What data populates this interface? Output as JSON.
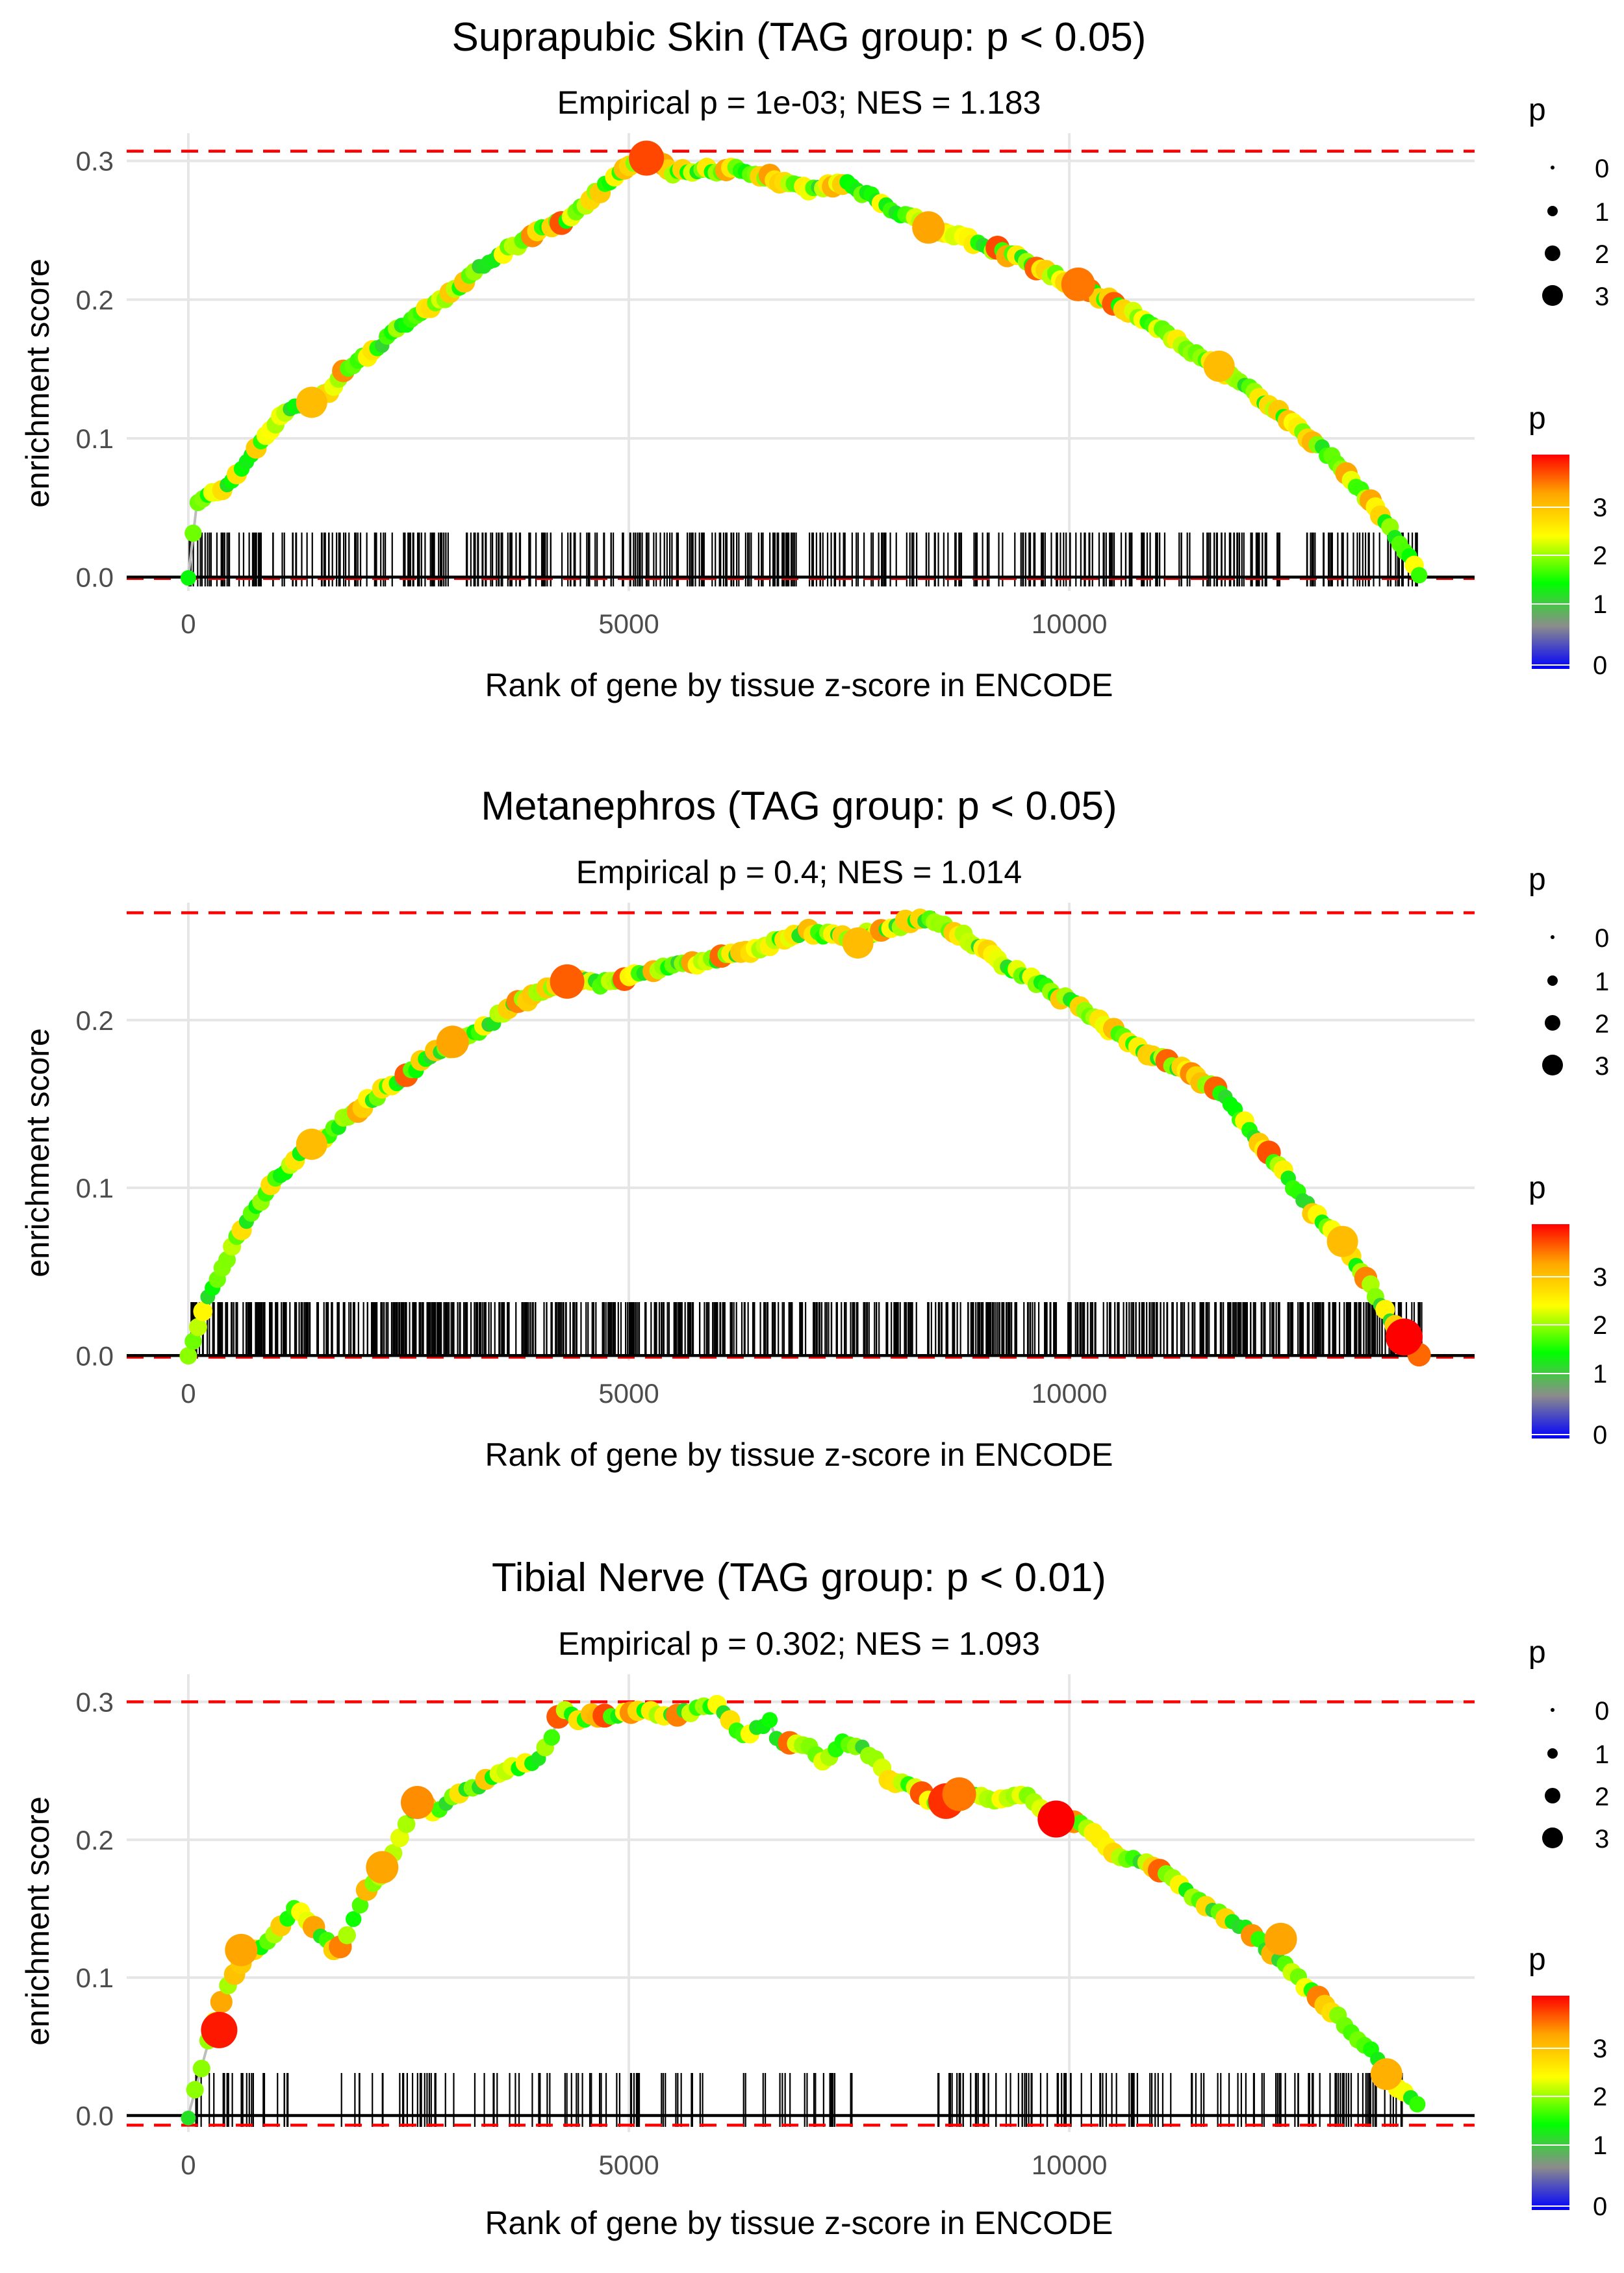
{
  "colors": {
    "panel_grid": "#e6e6e6",
    "threshold_line": "#ff0000",
    "baseline": "#000000",
    "curve": "#bdbdbd",
    "rug": "#000000",
    "axis_text": "#4d4d4d",
    "gradient": [
      "#0000ff",
      "#8c8c8c",
      "#00ff00",
      "#ffff00",
      "#ffa500",
      "#ff0000"
    ]
  },
  "legend": {
    "size_title": "p",
    "size_labels": [
      "0",
      "1",
      "2",
      "3"
    ],
    "color_title": "p",
    "color_labels": [
      "0",
      "1",
      "2",
      "3"
    ]
  },
  "chart_data": [
    {
      "type": "line",
      "title": "Suprapubic Skin (TAG group: p < 0.05)",
      "subtitle": "Empirical p = 1e-03; NES = 1.183",
      "xlabel": "Rank of gene by tissue z-score in ENCODE",
      "ylabel": "enrichment score",
      "xlim": [
        -700,
        14600
      ],
      "ylim": [
        -0.01,
        0.32
      ],
      "xticks": [
        0,
        5000,
        10000
      ],
      "xtick_labels": [
        "0",
        "5000",
        "10000"
      ],
      "yticks": [
        0.0,
        0.1,
        0.2,
        0.3
      ],
      "ytick_labels": [
        "0.0",
        "0.1",
        "0.2",
        "0.3"
      ],
      "grid": true,
      "max_es": 0.307,
      "min_es": -0.001,
      "n_genes": 14000,
      "curve": [
        [
          0,
          0
        ],
        [
          100,
          0.055
        ],
        [
          300,
          0.062
        ],
        [
          500,
          0.068
        ],
        [
          700,
          0.085
        ],
        [
          900,
          0.105
        ],
        [
          1100,
          0.12
        ],
        [
          1400,
          0.126
        ],
        [
          1600,
          0.135
        ],
        [
          1800,
          0.15
        ],
        [
          2100,
          0.163
        ],
        [
          2400,
          0.18
        ],
        [
          2700,
          0.193
        ],
        [
          3000,
          0.205
        ],
        [
          3300,
          0.222
        ],
        [
          3600,
          0.235
        ],
        [
          4000,
          0.25
        ],
        [
          4300,
          0.257
        ],
        [
          4600,
          0.275
        ],
        [
          4900,
          0.29
        ],
        [
          5200,
          0.305
        ],
        [
          5500,
          0.292
        ],
        [
          5800,
          0.293
        ],
        [
          6200,
          0.294
        ],
        [
          6600,
          0.288
        ],
        [
          7000,
          0.28
        ],
        [
          7500,
          0.283
        ],
        [
          8000,
          0.265
        ],
        [
          8500,
          0.25
        ],
        [
          9000,
          0.24
        ],
        [
          9500,
          0.228
        ],
        [
          10000,
          0.212
        ],
        [
          10500,
          0.198
        ],
        [
          11000,
          0.18
        ],
        [
          11500,
          0.158
        ],
        [
          12000,
          0.138
        ],
        [
          12500,
          0.112
        ],
        [
          13000,
          0.085
        ],
        [
          13500,
          0.048
        ],
        [
          13900,
          0.01
        ],
        [
          14000,
          0.0
        ]
      ],
      "rug_seed": 7,
      "rug_count": 430,
      "rug_range": [
        0,
        14000
      ],
      "point_spacing": 55,
      "point_seed": 11,
      "highlight_points": [
        [
          5200,
          0.302,
          3.6
        ],
        [
          1400,
          0.126,
          3.0
        ],
        [
          8400,
          0.252,
          3.2
        ],
        [
          10100,
          0.211,
          3.4
        ],
        [
          11700,
          0.152,
          3.0
        ]
      ]
    },
    {
      "type": "line",
      "title": "Metanephros (TAG group: p < 0.05)",
      "subtitle": "Empirical p = 0.4; NES = 1.014",
      "xlabel": "Rank of gene by tissue z-score in ENCODE",
      "ylabel": "enrichment score",
      "xlim": [
        -700,
        14600
      ],
      "ylim": [
        -0.003,
        0.27
      ],
      "xticks": [
        0,
        5000,
        10000
      ],
      "xtick_labels": [
        "0",
        "5000",
        "10000"
      ],
      "yticks": [
        0.0,
        0.1,
        0.2
      ],
      "ytick_labels": [
        "0.0",
        "0.1",
        "0.2"
      ],
      "grid": true,
      "max_es": 0.264,
      "min_es": -0.001,
      "n_genes": 14000,
      "curve": [
        [
          0,
          0
        ],
        [
          150,
          0.025
        ],
        [
          300,
          0.043
        ],
        [
          500,
          0.065
        ],
        [
          700,
          0.085
        ],
        [
          1000,
          0.105
        ],
        [
          1300,
          0.122
        ],
        [
          1600,
          0.133
        ],
        [
          2000,
          0.15
        ],
        [
          2400,
          0.165
        ],
        [
          2800,
          0.18
        ],
        [
          3200,
          0.19
        ],
        [
          3600,
          0.205
        ],
        [
          4000,
          0.218
        ],
        [
          4300,
          0.223
        ],
        [
          4700,
          0.222
        ],
        [
          5000,
          0.225
        ],
        [
          5500,
          0.232
        ],
        [
          6000,
          0.237
        ],
        [
          6500,
          0.243
        ],
        [
          7000,
          0.253
        ],
        [
          7500,
          0.248
        ],
        [
          8000,
          0.255
        ],
        [
          8300,
          0.262
        ],
        [
          8800,
          0.25
        ],
        [
          9300,
          0.232
        ],
        [
          9800,
          0.218
        ],
        [
          10300,
          0.2
        ],
        [
          10800,
          0.183
        ],
        [
          11300,
          0.17
        ],
        [
          11700,
          0.158
        ],
        [
          12200,
          0.125
        ],
        [
          12700,
          0.09
        ],
        [
          13200,
          0.06
        ],
        [
          13600,
          0.025
        ],
        [
          13900,
          0.005
        ],
        [
          14000,
          0.0
        ]
      ],
      "rug_seed": 13,
      "rug_count": 720,
      "rug_range": [
        0,
        14000
      ],
      "point_spacing": 55,
      "point_seed": 17,
      "highlight_points": [
        [
          4300,
          0.223,
          3.5
        ],
        [
          3000,
          0.187,
          3.2
        ],
        [
          1400,
          0.126,
          3.0
        ],
        [
          7600,
          0.246,
          3.0
        ],
        [
          13100,
          0.068,
          3.0
        ],
        [
          13800,
          0.011,
          3.9
        ]
      ]
    },
    {
      "type": "line",
      "title": "Tibial Nerve (TAG group: p < 0.01)",
      "subtitle": "Empirical p = 0.302; NES = 1.093",
      "xlabel": "Rank of gene by tissue z-score in ENCODE",
      "ylabel": "enrichment score",
      "xlim": [
        -700,
        14600
      ],
      "ylim": [
        -0.012,
        0.32
      ],
      "xticks": [
        0,
        5000,
        10000
      ],
      "xtick_labels": [
        "0",
        "5000",
        "10000"
      ],
      "yticks": [
        0.0,
        0.1,
        0.2,
        0.3
      ],
      "ytick_labels": [
        "0.0",
        "0.1",
        "0.2",
        "0.3"
      ],
      "grid": true,
      "max_es": 0.3,
      "min_es": -0.007,
      "n_genes": 14000,
      "curve": [
        [
          0,
          0
        ],
        [
          150,
          0.035
        ],
        [
          300,
          0.07
        ],
        [
          500,
          0.1
        ],
        [
          700,
          0.12
        ],
        [
          900,
          0.125
        ],
        [
          1100,
          0.14
        ],
        [
          1200,
          0.152
        ],
        [
          1700,
          0.118
        ],
        [
          1800,
          0.13
        ],
        [
          2000,
          0.16
        ],
        [
          2200,
          0.175
        ],
        [
          2400,
          0.2
        ],
        [
          2600,
          0.227
        ],
        [
          2800,
          0.22
        ],
        [
          3000,
          0.232
        ],
        [
          3300,
          0.24
        ],
        [
          3600,
          0.25
        ],
        [
          3900,
          0.255
        ],
        [
          4100,
          0.27
        ],
        [
          4250,
          0.298
        ],
        [
          4400,
          0.285
        ],
        [
          4600,
          0.29
        ],
        [
          4900,
          0.29
        ],
        [
          5200,
          0.293
        ],
        [
          5500,
          0.29
        ],
        [
          5800,
          0.295
        ],
        [
          6000,
          0.298
        ],
        [
          6300,
          0.275
        ],
        [
          6600,
          0.285
        ],
        [
          6700,
          0.27
        ],
        [
          7000,
          0.27
        ],
        [
          7200,
          0.255
        ],
        [
          7400,
          0.27
        ],
        [
          7700,
          0.265
        ],
        [
          8000,
          0.24
        ],
        [
          8200,
          0.24
        ],
        [
          8500,
          0.225
        ],
        [
          8800,
          0.235
        ],
        [
          9200,
          0.228
        ],
        [
          9500,
          0.232
        ],
        [
          9800,
          0.218
        ],
        [
          10200,
          0.21
        ],
        [
          10500,
          0.19
        ],
        [
          11000,
          0.18
        ],
        [
          11500,
          0.155
        ],
        [
          12000,
          0.135
        ],
        [
          12500,
          0.105
        ],
        [
          13000,
          0.075
        ],
        [
          13500,
          0.042
        ],
        [
          13800,
          0.015
        ],
        [
          14000,
          0.005
        ]
      ],
      "rug_seed": 29,
      "rug_count": 230,
      "rug_range": [
        0,
        14000
      ],
      "rug_gaps": [
        [
          1200,
          1700
        ],
        [
          5950,
          6300
        ],
        [
          7600,
          8500
        ]
      ],
      "point_spacing": 75,
      "point_seed": 31,
      "highlight_points": [
        [
          350,
          0.062,
          3.8
        ],
        [
          600,
          0.12,
          3.2
        ],
        [
          2200,
          0.18,
          3.2
        ],
        [
          2600,
          0.227,
          3.3
        ],
        [
          8600,
          0.228,
          3.7
        ],
        [
          8750,
          0.233,
          3.4
        ],
        [
          9850,
          0.215,
          3.9
        ],
        [
          12400,
          0.128,
          3.2
        ],
        [
          13600,
          0.03,
          3.1
        ]
      ]
    }
  ]
}
